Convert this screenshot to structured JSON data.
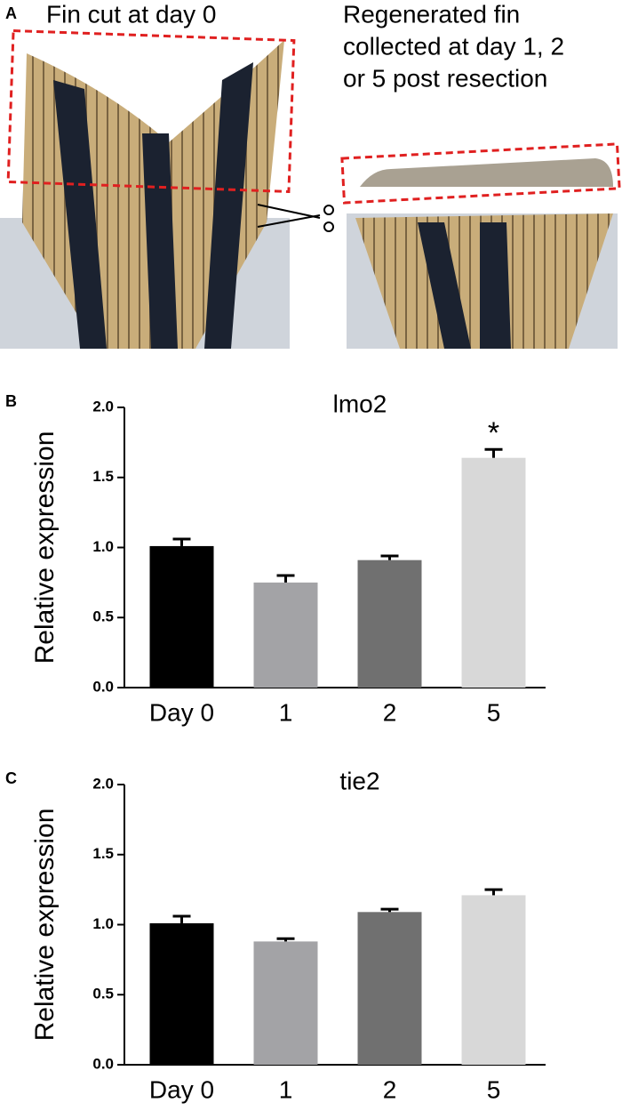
{
  "panel_a": {
    "label": "A",
    "left_caption": "Fin cut at day 0",
    "right_caption_lines": [
      "Regenerated fin",
      "collected at day 1, 2",
      "or 5 post resection"
    ]
  },
  "chart_data": [
    {
      "type": "bar",
      "panel": "B",
      "title": "lmo2",
      "y_label": "Relative expression",
      "categories": [
        "Day 0",
        "1",
        "2",
        "5"
      ],
      "values": [
        1.01,
        0.75,
        0.91,
        1.64
      ],
      "errors": [
        0.05,
        0.05,
        0.03,
        0.06
      ],
      "colors": [
        "#000000",
        "#a3a3a6",
        "#707070",
        "#d8d8d8"
      ],
      "ylim": [
        0,
        2
      ],
      "yticks": [
        {
          "value": 0,
          "label": "0.0"
        },
        {
          "value": 0.5,
          "label": "0.5"
        },
        {
          "value": 1,
          "label": "1.0"
        },
        {
          "value": 1.5,
          "label": "1.5"
        },
        {
          "value": 2,
          "label": "2.0"
        }
      ],
      "annotations": [
        {
          "text": "*",
          "category": "5"
        }
      ]
    },
    {
      "type": "bar",
      "panel": "C",
      "title": "tie2",
      "y_label": "Relative expression",
      "categories": [
        "Day 0",
        "1",
        "2",
        "5"
      ],
      "values": [
        1.01,
        0.88,
        1.09,
        1.21
      ],
      "errors": [
        0.05,
        0.02,
        0.02,
        0.04
      ],
      "colors": [
        "#000000",
        "#a3a3a6",
        "#707070",
        "#d8d8d8"
      ],
      "ylim": [
        0,
        2
      ],
      "yticks": [
        {
          "value": 0,
          "label": "0.0"
        },
        {
          "value": 0.5,
          "label": "0.5"
        },
        {
          "value": 1,
          "label": "1.0"
        },
        {
          "value": 1.5,
          "label": "1.5"
        },
        {
          "value": 2,
          "label": "2.0"
        }
      ]
    }
  ]
}
